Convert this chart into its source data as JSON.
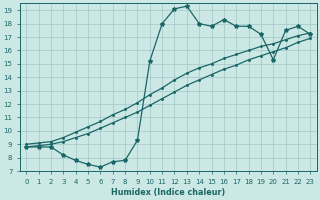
{
  "xlabel": "Humidex (Indice chaleur)",
  "ylabel": "",
  "bg_color": "#cce8e5",
  "grid_color": "#aacccc",
  "line_color": "#1a6666",
  "xlim": [
    -0.5,
    23.5
  ],
  "ylim": [
    7.0,
    19.5
  ],
  "xticks": [
    0,
    1,
    2,
    3,
    4,
    5,
    6,
    7,
    8,
    9,
    10,
    11,
    12,
    13,
    14,
    15,
    16,
    17,
    18,
    19,
    20,
    21,
    22,
    23
  ],
  "yticks": [
    7,
    8,
    9,
    10,
    11,
    12,
    13,
    14,
    15,
    16,
    17,
    18,
    19
  ],
  "line_jagged_x": [
    0,
    1,
    2,
    3,
    4,
    5,
    6,
    7,
    8,
    9,
    10,
    11,
    12,
    13,
    14,
    15,
    16,
    17,
    18,
    19,
    20,
    21,
    22,
    23
  ],
  "line_jagged_y": [
    8.8,
    8.8,
    8.8,
    8.2,
    7.8,
    7.5,
    7.3,
    7.7,
    7.8,
    9.3,
    15.2,
    18.0,
    19.1,
    19.3,
    18.0,
    17.8,
    18.3,
    17.8,
    17.8,
    17.2,
    15.3,
    17.5,
    17.8,
    17.2
  ],
  "line_upper_x": [
    0,
    1,
    2,
    3,
    4,
    5,
    6,
    7,
    8,
    9,
    10,
    11,
    12,
    13,
    14,
    15,
    16,
    17,
    18,
    19,
    20,
    21,
    22,
    23
  ],
  "line_upper_y": [
    9.0,
    9.1,
    9.2,
    9.5,
    9.9,
    10.3,
    10.7,
    11.2,
    11.6,
    12.1,
    12.7,
    13.2,
    13.8,
    14.3,
    14.7,
    15.0,
    15.4,
    15.7,
    16.0,
    16.3,
    16.5,
    16.8,
    17.1,
    17.3
  ],
  "line_lower_x": [
    0,
    1,
    2,
    3,
    4,
    5,
    6,
    7,
    8,
    9,
    10,
    11,
    12,
    13,
    14,
    15,
    16,
    17,
    18,
    19,
    20,
    21,
    22,
    23
  ],
  "line_lower_y": [
    8.8,
    8.9,
    9.0,
    9.2,
    9.5,
    9.8,
    10.2,
    10.6,
    11.0,
    11.4,
    11.9,
    12.4,
    12.9,
    13.4,
    13.8,
    14.2,
    14.6,
    14.9,
    15.3,
    15.6,
    15.9,
    16.2,
    16.6,
    16.9
  ]
}
